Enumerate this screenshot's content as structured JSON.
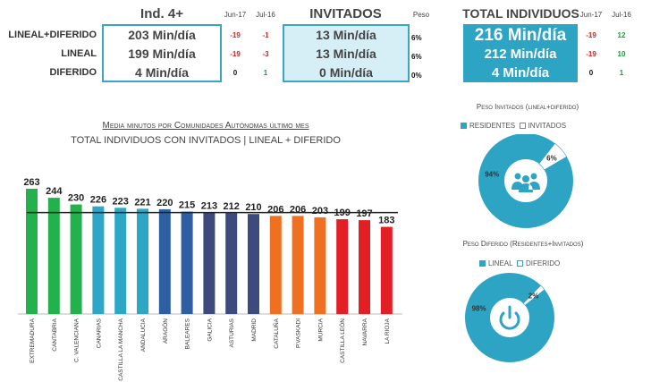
{
  "header": {
    "ind_title": "Ind. 4+",
    "jun17": "Jun-17",
    "jul16": "Jul-16",
    "invitados_title": "INVITADOS",
    "peso": "Peso",
    "total_title": "TOTAL INDIVIDUOS"
  },
  "rows": [
    {
      "label": "LINEAL+DIFERIDO",
      "ind": "203 Min/día",
      "ind_jun17": "-19",
      "ind_jul16": "-1",
      "inv": "13 Min/día",
      "peso": "6%",
      "total": "216 Min/día",
      "tot_jun17": "-19",
      "tot_jul16": "12"
    },
    {
      "label": "LINEAL",
      "ind": "199 Min/día",
      "ind_jun17": "-19",
      "ind_jul16": "-3",
      "inv": "13 Min/día",
      "peso": "6%",
      "total": "212 Min/día",
      "tot_jun17": "-19",
      "tot_jul16": "10"
    },
    {
      "label": "DIFERIDO",
      "ind": "4 Min/día",
      "ind_jun17": "0",
      "ind_jul16": "1",
      "inv": "0 Min/día",
      "peso": "0%",
      "total": "4 Min/día",
      "tot_jun17": "0",
      "tot_jul16": "1"
    }
  ],
  "chart_data": [
    {
      "type": "bar",
      "title": "Media minutos por Comunidades Autónomas último mes",
      "subtitle": "TOTAL INDIVIDUOS CON INVITADOS | LINEAL + DIFERIDO",
      "categories": [
        "EXTREMADURA",
        "CANTABRIA",
        "C. VALENCIANA",
        "CANARIAS",
        "CASTILLA LA MANCHA",
        "ANDALUCIA",
        "ARAGÓN",
        "BALEARES",
        "GALICIA",
        "ASTURIAS",
        "MADRID",
        "CATALUÑA",
        "P.VASKADI",
        "MURCIA",
        "CASTILLA LEÓN",
        "NAVARRA",
        "LA RIOJA"
      ],
      "values": [
        263,
        244,
        230,
        226,
        223,
        221,
        220,
        215,
        213,
        212,
        210,
        206,
        206,
        203,
        199,
        197,
        183
      ],
      "colors": [
        "#22b14c",
        "#22b14c",
        "#22b14c",
        "#2ea6c6",
        "#2ea6c6",
        "#2ea6c6",
        "#2e5fa3",
        "#2e5fa3",
        "#3d4a7c",
        "#3d4a7c",
        "#3d4a7c",
        "#f07022",
        "#f07022",
        "#f07022",
        "#e31e25",
        "#e31e25",
        "#e31e25"
      ],
      "reference_line": 213,
      "ylim": [
        0,
        263
      ]
    },
    {
      "type": "pie",
      "title": "Peso Invitados (lineal+diferido)",
      "labels": [
        "RESIDENTES",
        "INVITADOS"
      ],
      "values": [
        94,
        6
      ],
      "value_labels": [
        "94%",
        "6%"
      ],
      "icon": "people-icon"
    },
    {
      "type": "pie",
      "title": "Peso Diferido  (Residentes+Invitados)",
      "labels": [
        "LINEAL",
        "DIFERIDO"
      ],
      "values": [
        98,
        2
      ],
      "value_labels": [
        "98%",
        "2%"
      ],
      "icon": "power-icon"
    }
  ],
  "colors": {
    "accent": "#2ea4c4",
    "light": "#d6eef5"
  }
}
